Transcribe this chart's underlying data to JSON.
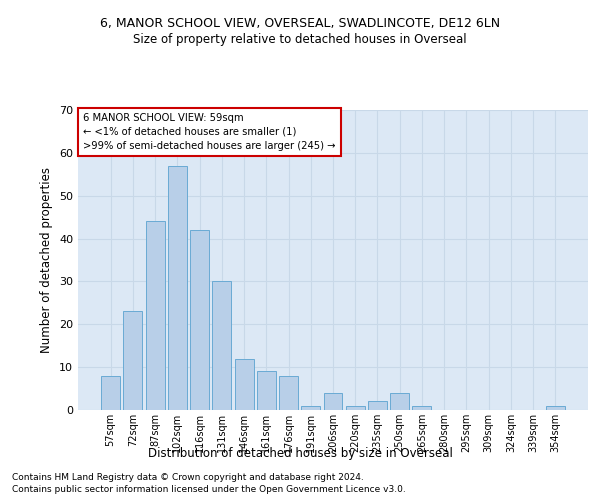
{
  "title1": "6, MANOR SCHOOL VIEW, OVERSEAL, SWADLINCOTE, DE12 6LN",
  "title2": "Size of property relative to detached houses in Overseal",
  "xlabel": "Distribution of detached houses by size in Overseal",
  "ylabel": "Number of detached properties",
  "bar_labels": [
    "57sqm",
    "72sqm",
    "87sqm",
    "102sqm",
    "116sqm",
    "131sqm",
    "146sqm",
    "161sqm",
    "176sqm",
    "191sqm",
    "206sqm",
    "220sqm",
    "235sqm",
    "250sqm",
    "265sqm",
    "280sqm",
    "295sqm",
    "309sqm",
    "324sqm",
    "339sqm",
    "354sqm"
  ],
  "bar_values": [
    8,
    23,
    44,
    57,
    42,
    30,
    12,
    9,
    8,
    1,
    4,
    1,
    2,
    4,
    1,
    0,
    0,
    0,
    0,
    0,
    1
  ],
  "bar_color": "#b8cfe8",
  "bar_edge_color": "#6aaad4",
  "annotation_text": "6 MANOR SCHOOL VIEW: 59sqm\n← <1% of detached houses are smaller (1)\n>99% of semi-detached houses are larger (245) →",
  "annotation_box_color": "#ffffff",
  "annotation_box_edge_color": "#cc0000",
  "ylim": [
    0,
    70
  ],
  "yticks": [
    0,
    10,
    20,
    30,
    40,
    50,
    60,
    70
  ],
  "grid_color": "#c8d8e8",
  "background_color": "#dce8f5",
  "footnote1": "Contains HM Land Registry data © Crown copyright and database right 2024.",
  "footnote2": "Contains public sector information licensed under the Open Government Licence v3.0."
}
